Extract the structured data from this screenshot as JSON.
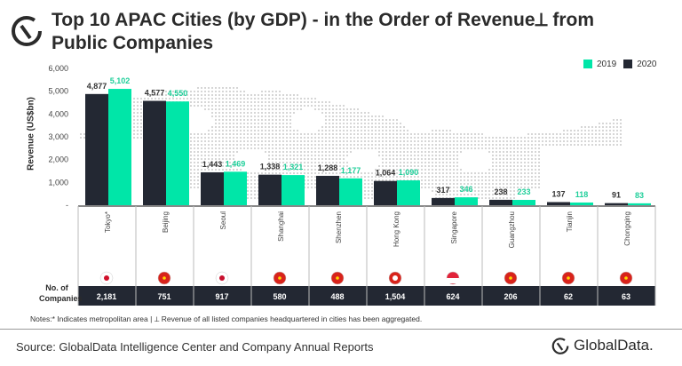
{
  "title": "Top 10 APAC Cities (by GDP) - in the Order of Revenue⟂ from Public Companies",
  "legend": [
    {
      "label": "2019",
      "color": "#00e6a8"
    },
    {
      "label": "2020",
      "color": "#232833"
    }
  ],
  "colors": {
    "2019": "#00e6a8",
    "2020": "#232833",
    "row_bg": "#232833"
  },
  "chart_data": {
    "type": "bar",
    "ylabel": "Revenue (US$bn)",
    "ylim": [
      0,
      6000
    ],
    "yticks": [
      "-",
      "1,000",
      "2,000",
      "3,000",
      "4,000",
      "5,000",
      "6,000"
    ],
    "categories": [
      "Tokyo*",
      "Beijing",
      "Seoul",
      "Shanghai",
      "Shenzhen",
      "Hong Kong",
      "Singapore",
      "Guangzhou",
      "Tianjin",
      "Chongqing"
    ],
    "series": [
      {
        "name": "2020",
        "values": [
          4877,
          4577,
          1443,
          1338,
          1288,
          1064,
          317,
          238,
          137,
          91
        ],
        "labels": [
          "4,877",
          "4,577",
          "1,443",
          "1,338",
          "1,288",
          "1,064",
          "317",
          "238",
          "137",
          "91"
        ]
      },
      {
        "name": "2019",
        "values": [
          5102,
          4550,
          1469,
          1321,
          1177,
          1090,
          346,
          233,
          118,
          83
        ],
        "labels": [
          "5,102",
          "4,550",
          "1,469",
          "1,321",
          "1,177",
          "1,090",
          "346",
          "233",
          "118",
          "83"
        ]
      }
    ],
    "legend_position": "top-right",
    "flags": [
      "japan",
      "china",
      "south-korea",
      "china",
      "china",
      "hong-kong",
      "singapore",
      "china",
      "china",
      "china"
    ],
    "companies_label": "No. of Companies",
    "companies": [
      "2,181",
      "751",
      "917",
      "580",
      "488",
      "1,504",
      "624",
      "206",
      "62",
      "63"
    ]
  },
  "notes": "Notes:* Indicates metropolitan  area | ⟂ Revenue of all listed companies headquartered  in cities has been aggregated.",
  "source": "Source: GlobalData Intelligence Center and Company Annual Reports",
  "brand": "GlobalData."
}
